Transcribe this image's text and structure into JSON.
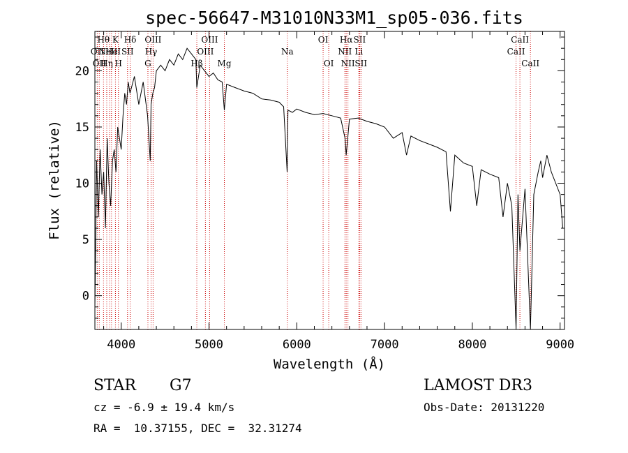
{
  "chart_data": {
    "type": "line",
    "title": "spec-56647-M31010N33M1_sp05-036.fits",
    "xlabel": "Wavelength (Å)",
    "ylabel": "Flux (relative)",
    "xlim": [
      3700,
      9050
    ],
    "ylim": [
      -3,
      23.5
    ],
    "xticks": [
      4000,
      5000,
      6000,
      7000,
      8000,
      9000
    ],
    "yticks": [
      0,
      5,
      10,
      15,
      20
    ],
    "series": [
      {
        "name": "spectrum",
        "x": [
          3700,
          3720,
          3740,
          3760,
          3780,
          3800,
          3820,
          3840,
          3860,
          3880,
          3900,
          3920,
          3940,
          3960,
          3980,
          4000,
          4020,
          4040,
          4060,
          4080,
          4100,
          4150,
          4200,
          4250,
          4300,
          4330,
          4340,
          4360,
          4380,
          4400,
          4450,
          4500,
          4550,
          4600,
          4650,
          4700,
          4750,
          4800,
          4850,
          4861,
          4900,
          4950,
          5000,
          5050,
          5100,
          5150,
          5175,
          5200,
          5300,
          5400,
          5500,
          5600,
          5700,
          5800,
          5850,
          5890,
          5900,
          5950,
          6000,
          6100,
          6200,
          6300,
          6400,
          6500,
          6550,
          6563,
          6600,
          6700,
          6800,
          6900,
          7000,
          7100,
          7200,
          7250,
          7300,
          7400,
          7500,
          7600,
          7700,
          7750,
          7800,
          7900,
          8000,
          8050,
          8100,
          8200,
          8300,
          8350,
          8400,
          8450,
          8498,
          8520,
          8542,
          8600,
          8662,
          8700,
          8750,
          8780,
          8800,
          8850,
          8900,
          8950,
          9000,
          9030
        ],
        "y": [
          -1,
          12,
          7,
          13,
          9,
          11,
          6,
          14,
          10,
          8,
          12,
          13,
          11,
          15,
          14,
          13,
          16,
          18,
          17,
          19,
          18,
          19.5,
          17,
          19,
          16,
          12,
          17,
          18,
          18.5,
          20,
          20.5,
          20,
          21,
          20.5,
          21.5,
          21,
          22,
          21.5,
          21,
          18.5,
          20.5,
          20,
          19.5,
          19.8,
          19.2,
          19,
          16.5,
          18.8,
          18.5,
          18.2,
          18,
          17.5,
          17.4,
          17.2,
          16.8,
          11,
          16.5,
          16.3,
          16.6,
          16.3,
          16.1,
          16.2,
          16,
          15.8,
          14,
          12.5,
          15.7,
          15.8,
          15.5,
          15.3,
          15,
          14,
          14.5,
          12.5,
          14.2,
          13.8,
          13.5,
          13.2,
          12.8,
          7.5,
          12.5,
          11.8,
          11.5,
          8,
          11.2,
          10.8,
          10.5,
          7,
          10,
          8,
          -3,
          9,
          4,
          9.5,
          -3,
          9,
          11,
          12,
          10.5,
          12.5,
          11,
          10,
          9,
          6
        ]
      }
    ],
    "line_markers": [
      {
        "wave": 3727,
        "label": "OII",
        "row": 2
      },
      {
        "wave": 3750,
        "label": "OII",
        "row": 3
      },
      {
        "wave": 3798,
        "label": "Hθ",
        "row": 1
      },
      {
        "wave": 3835,
        "label": "Hη",
        "row": 3
      },
      {
        "wave": 3869,
        "label": "NeIII",
        "row": 2
      },
      {
        "wave": 3889,
        "label": "He",
        "row": 2
      },
      {
        "wave": 3934,
        "label": "K",
        "row": 1
      },
      {
        "wave": 3968,
        "label": "H",
        "row": 3
      },
      {
        "wave": 4072,
        "label": "SII",
        "row": 2
      },
      {
        "wave": 4102,
        "label": "Hδ",
        "row": 1
      },
      {
        "wave": 4304,
        "label": "G",
        "row": 3
      },
      {
        "wave": 4340,
        "label": "Hγ",
        "row": 2
      },
      {
        "wave": 4363,
        "label": "OIII",
        "row": 1
      },
      {
        "wave": 4861,
        "label": "Hβ",
        "row": 3
      },
      {
        "wave": 4959,
        "label": "OIII",
        "row": 2
      },
      {
        "wave": 5007,
        "label": "OIII",
        "row": 1
      },
      {
        "wave": 5175,
        "label": "Mg",
        "row": 3
      },
      {
        "wave": 5893,
        "label": "Na",
        "row": 2
      },
      {
        "wave": 6300,
        "label": "OI",
        "row": 1
      },
      {
        "wave": 6364,
        "label": "OI",
        "row": 3
      },
      {
        "wave": 6548,
        "label": "NII",
        "row": 2
      },
      {
        "wave": 6563,
        "label": "Hα",
        "row": 1
      },
      {
        "wave": 6583,
        "label": "NII",
        "row": 3
      },
      {
        "wave": 6707,
        "label": "Li",
        "row": 2
      },
      {
        "wave": 6716,
        "label": "SII",
        "row": 1
      },
      {
        "wave": 6731,
        "label": "SII",
        "row": 3
      },
      {
        "wave": 8498,
        "label": "CaII",
        "row": 2
      },
      {
        "wave": 8542,
        "label": "CaII",
        "row": 1
      },
      {
        "wave": 8662,
        "label": "CaII",
        "row": 3
      }
    ]
  },
  "info": {
    "class_label": "STAR",
    "subclass": "G7",
    "survey": "LAMOST DR3",
    "cz": "cz = -6.9 ± 19.4 km/s",
    "obs_date": "Obs-Date: 20131220",
    "coords": "RA =  10.37155, DEC =  32.31274"
  },
  "colors": {
    "spectrum": "#000000",
    "marker": "#cc0000"
  }
}
